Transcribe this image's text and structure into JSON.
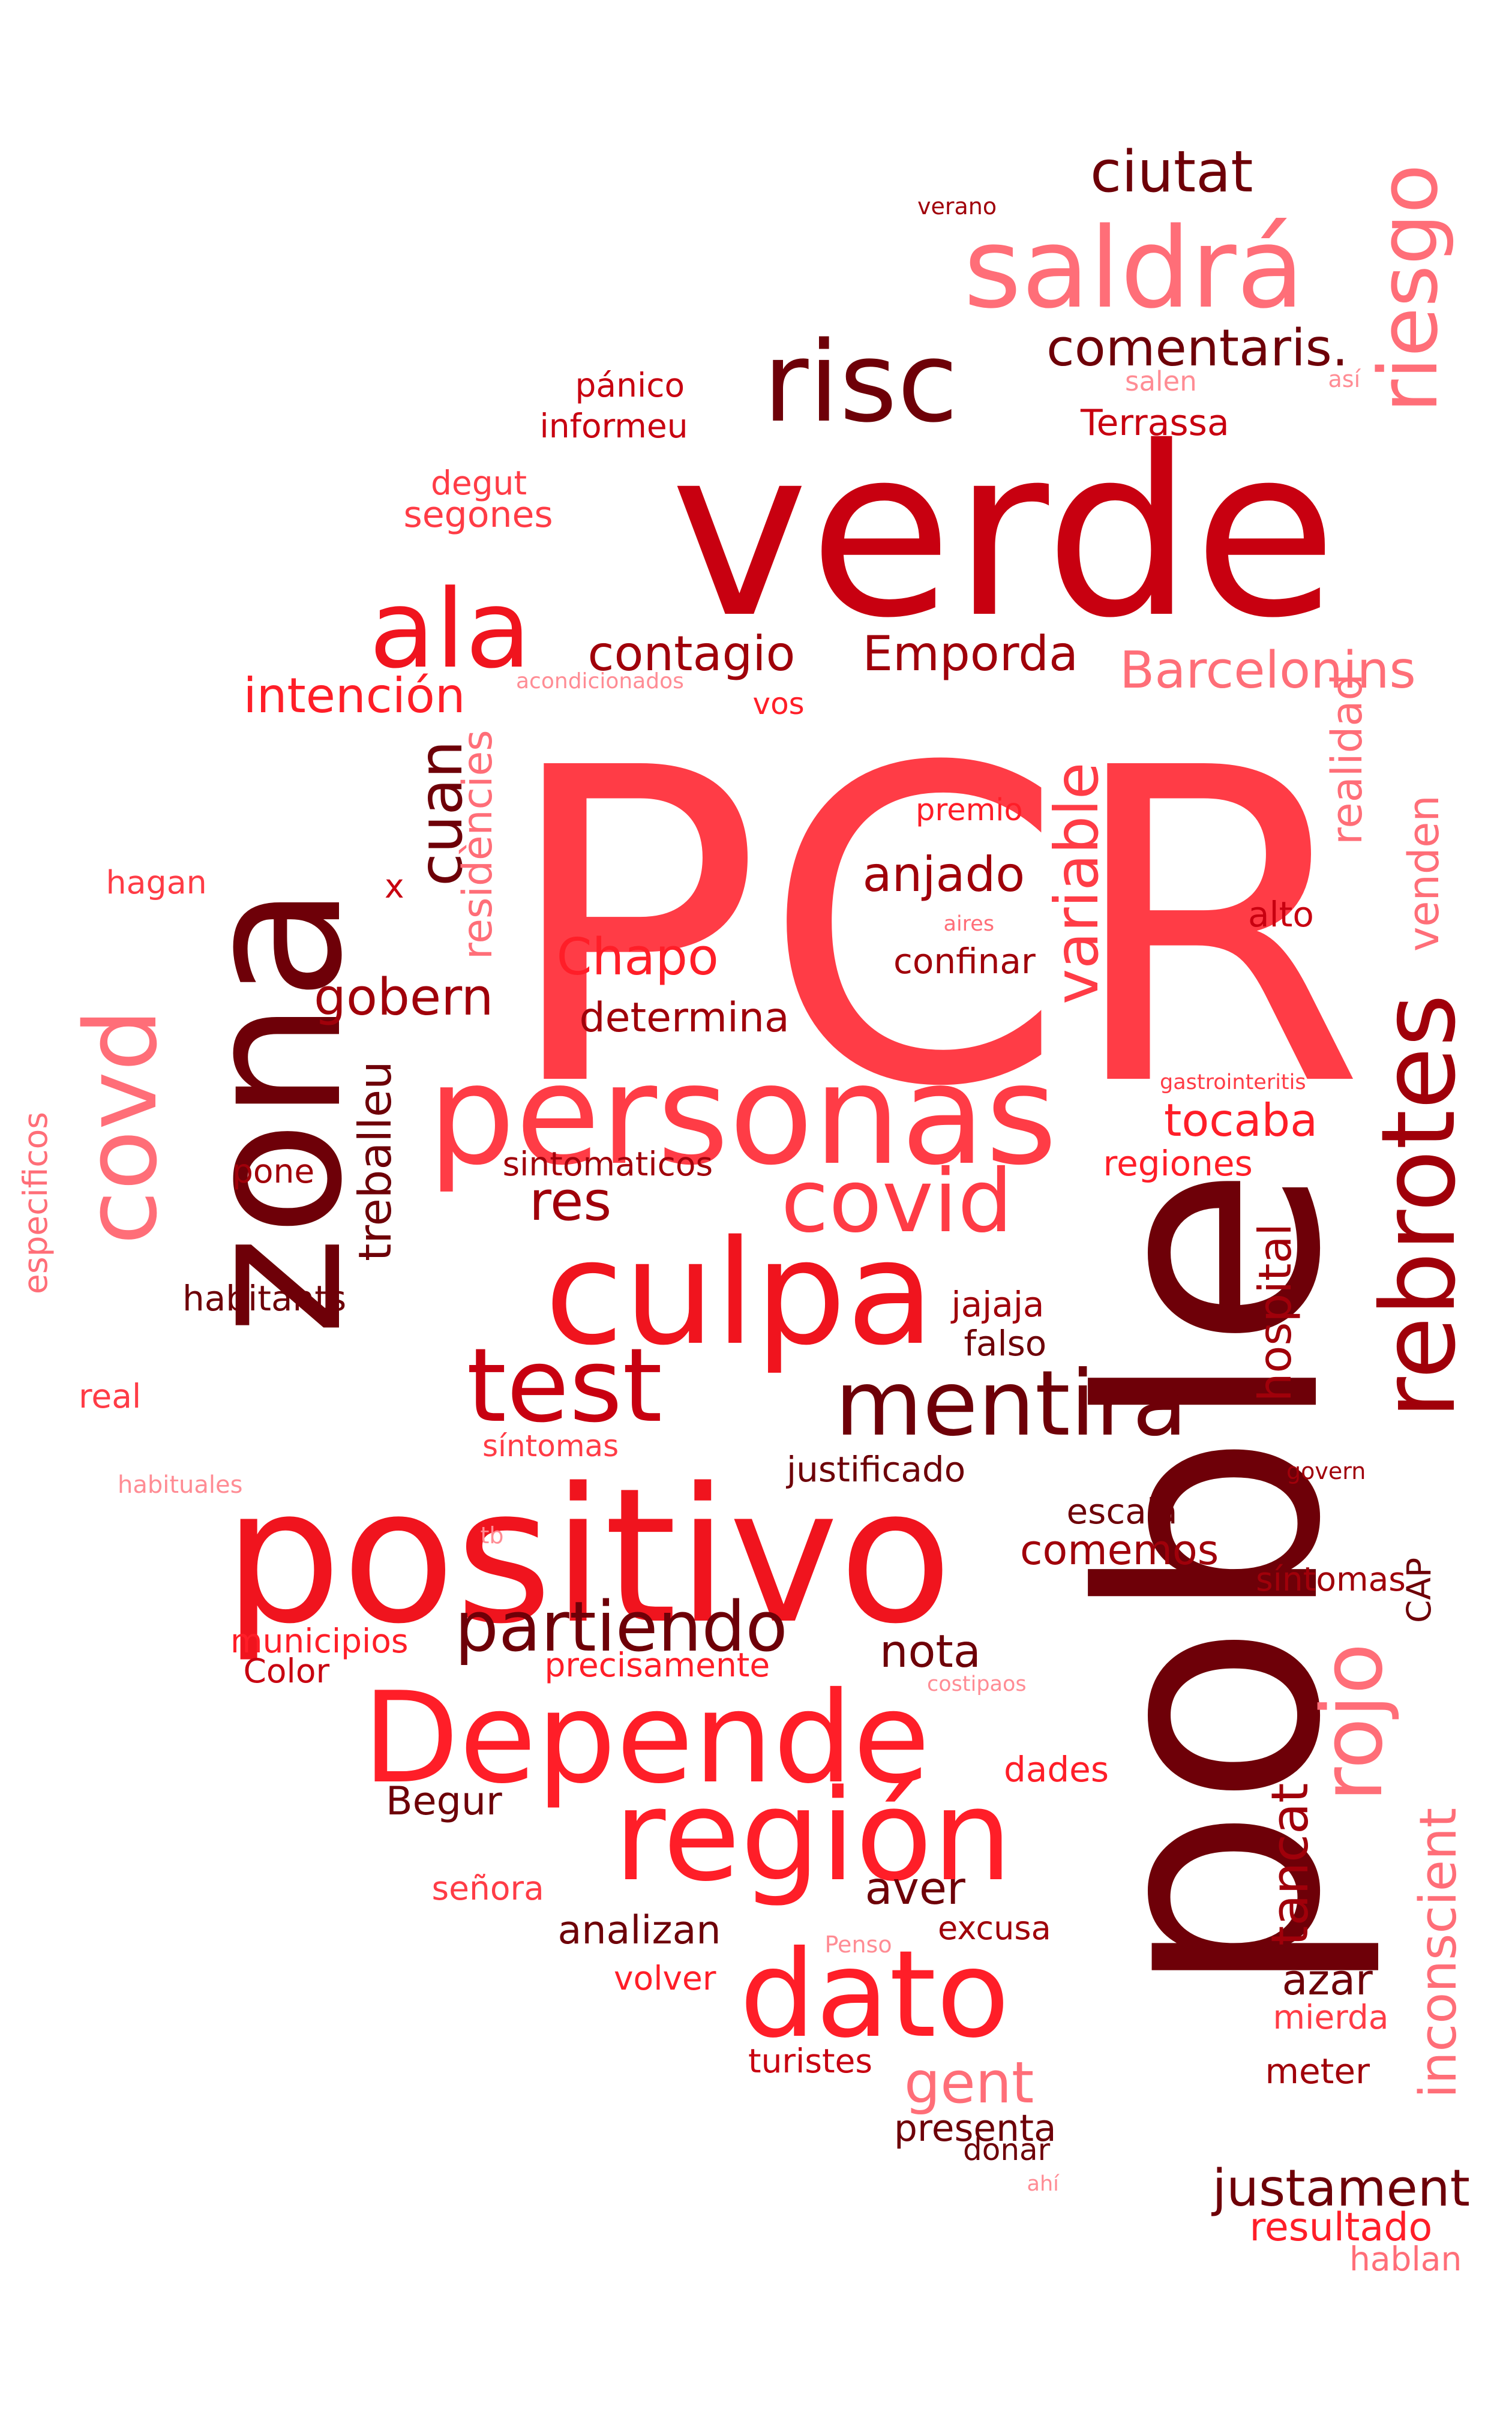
{
  "words": [
    {
      "text": "PCR",
      "color": "#ff3c46"
    },
    {
      "text": "verde",
      "color": "#c80010"
    },
    {
      "text": "zona",
      "color": "#6e0008"
    },
    {
      "text": "poble",
      "color": "#6e0008"
    },
    {
      "text": "positivo",
      "color": "#f0141e"
    },
    {
      "text": "personas",
      "color": "#ff3c46"
    },
    {
      "text": "culpa",
      "color": "#f0141e"
    },
    {
      "text": "Depende",
      "color": "#ff1e28"
    },
    {
      "text": "región",
      "color": "#ff1e28"
    },
    {
      "text": "dato",
      "color": "#ff1e28"
    },
    {
      "text": "test",
      "color": "#c80010"
    },
    {
      "text": "rebrotes",
      "color": "#a0000a"
    },
    {
      "text": "saldrá",
      "color": "#ff6e78"
    },
    {
      "text": "risc",
      "color": "#6e0008"
    },
    {
      "text": "ala",
      "color": "#f0141e"
    },
    {
      "text": "covd",
      "color": "#ff6e78"
    },
    {
      "text": "covid",
      "color": "#ff3c46"
    },
    {
      "text": "mentira",
      "color": "#6e0008"
    },
    {
      "text": "rojo",
      "color": "#ff6e78"
    },
    {
      "text": "riesgo",
      "color": "#ff6e78"
    },
    {
      "text": "partiendo",
      "color": "#6e0008"
    },
    {
      "text": "ciutat",
      "color": "#6e0008"
    },
    {
      "text": "comentaris.",
      "color": "#6e0008"
    },
    {
      "text": "contagio",
      "color": "#a0000a"
    },
    {
      "text": "Emporda",
      "color": "#a0000a"
    },
    {
      "text": "Barcelonins",
      "color": "#ff6e78"
    },
    {
      "text": "intención",
      "color": "#ff1e28"
    },
    {
      "text": "pánico",
      "color": "#c80010"
    },
    {
      "text": "informeu",
      "color": "#c80010"
    },
    {
      "text": "Terrassa",
      "color": "#c80010"
    },
    {
      "text": "salen",
      "color": "#ff8c94"
    },
    {
      "text": "degut",
      "color": "#ff3c46"
    },
    {
      "text": "segones",
      "color": "#ff3c46"
    },
    {
      "text": "verano",
      "color": "#a0000a"
    },
    {
      "text": "así",
      "color": "#ff8c94"
    },
    {
      "text": "acondicionados",
      "color": "#ff8c94"
    },
    {
      "text": "vos",
      "color": "#ff1e28"
    },
    {
      "text": "realidad",
      "color": "#ff6e78"
    },
    {
      "text": "cuan",
      "color": "#6e0008"
    },
    {
      "text": "residències",
      "color": "#ff6e78"
    },
    {
      "text": "premio",
      "color": "#ff1e28"
    },
    {
      "text": "x",
      "color": "#c80010"
    },
    {
      "text": "anjado",
      "color": "#a0000a"
    },
    {
      "text": "variable",
      "color": "#ff3c46"
    },
    {
      "text": "venden",
      "color": "#ff6e78"
    },
    {
      "text": "hagan",
      "color": "#ff3c46"
    },
    {
      "text": "aires",
      "color": "#ff6e78"
    },
    {
      "text": "alto",
      "color": "#c80010"
    },
    {
      "text": "Chapo",
      "color": "#ff1e28"
    },
    {
      "text": "confinar",
      "color": "#a0000a"
    },
    {
      "text": "gobern",
      "color": "#a0000a"
    },
    {
      "text": "determina",
      "color": "#a0000a"
    },
    {
      "text": "treballeu",
      "color": "#6e0008"
    },
    {
      "text": "gastrointeritis",
      "color": "#ff3c46"
    },
    {
      "text": "tocaba",
      "color": "#ff1e28"
    },
    {
      "text": "especificos",
      "color": "#ff6e78"
    },
    {
      "text": "pone",
      "color": "#a0000a"
    },
    {
      "text": "sintomaticos",
      "color": "#a0000a"
    },
    {
      "text": "regiones",
      "color": "#ff1e28"
    },
    {
      "text": "res",
      "color": "#a0000a"
    },
    {
      "text": "hospital",
      "color": "#a0000a"
    },
    {
      "text": "habitants",
      "color": "#6e0008"
    },
    {
      "text": "jajaja",
      "color": "#a0000a"
    },
    {
      "text": "falso",
      "color": "#6e0008"
    },
    {
      "text": "real",
      "color": "#ff3c46"
    },
    {
      "text": "síntomas",
      "color": "#ff3c46"
    },
    {
      "text": "habituales",
      "color": "#ff8c94"
    },
    {
      "text": "justificado",
      "color": "#6e0008"
    },
    {
      "text": "govern",
      "color": "#a0000a"
    },
    {
      "text": "escala",
      "color": "#6e0008"
    },
    {
      "text": "tb",
      "color": "#ff8c94"
    },
    {
      "text": "comemos",
      "color": "#a0000a"
    },
    {
      "text": "CAP",
      "color": "#6e0008"
    },
    {
      "text": "síntomas",
      "color": "#a0000a"
    },
    {
      "text": "municipios",
      "color": "#ff1e28"
    },
    {
      "text": "Color",
      "color": "#c80010"
    },
    {
      "text": "nota",
      "color": "#6e0008"
    },
    {
      "text": "precisamente",
      "color": "#ff1e28"
    },
    {
      "text": "costipaos",
      "color": "#ff8c94"
    },
    {
      "text": "dades",
      "color": "#ff1e28"
    },
    {
      "text": "Begur",
      "color": "#6e0008"
    },
    {
      "text": "tancat",
      "color": "#a0000a"
    },
    {
      "text": "inconscient",
      "color": "#ff6e78"
    },
    {
      "text": "aver",
      "color": "#6e0008"
    },
    {
      "text": "señora",
      "color": "#ff3c46"
    },
    {
      "text": "analizan",
      "color": "#6e0008"
    },
    {
      "text": "excusa",
      "color": "#a0000a"
    },
    {
      "text": "Penso",
      "color": "#ff8c94"
    },
    {
      "text": "azar",
      "color": "#6e0008"
    },
    {
      "text": "volver",
      "color": "#ff1e28"
    },
    {
      "text": "mierda",
      "color": "#ff3c46"
    },
    {
      "text": "gent",
      "color": "#ff6e78"
    },
    {
      "text": "turistes",
      "color": "#c80010"
    },
    {
      "text": "meter",
      "color": "#a0000a"
    },
    {
      "text": "presenta",
      "color": "#6e0008"
    },
    {
      "text": "donar",
      "color": "#6e0008"
    },
    {
      "text": "ahí",
      "color": "#ff8c94"
    },
    {
      "text": "justament",
      "color": "#6e0008"
    },
    {
      "text": "resultado",
      "color": "#ff1e28"
    },
    {
      "text": "hablan",
      "color": "#ff6e78"
    }
  ]
}
